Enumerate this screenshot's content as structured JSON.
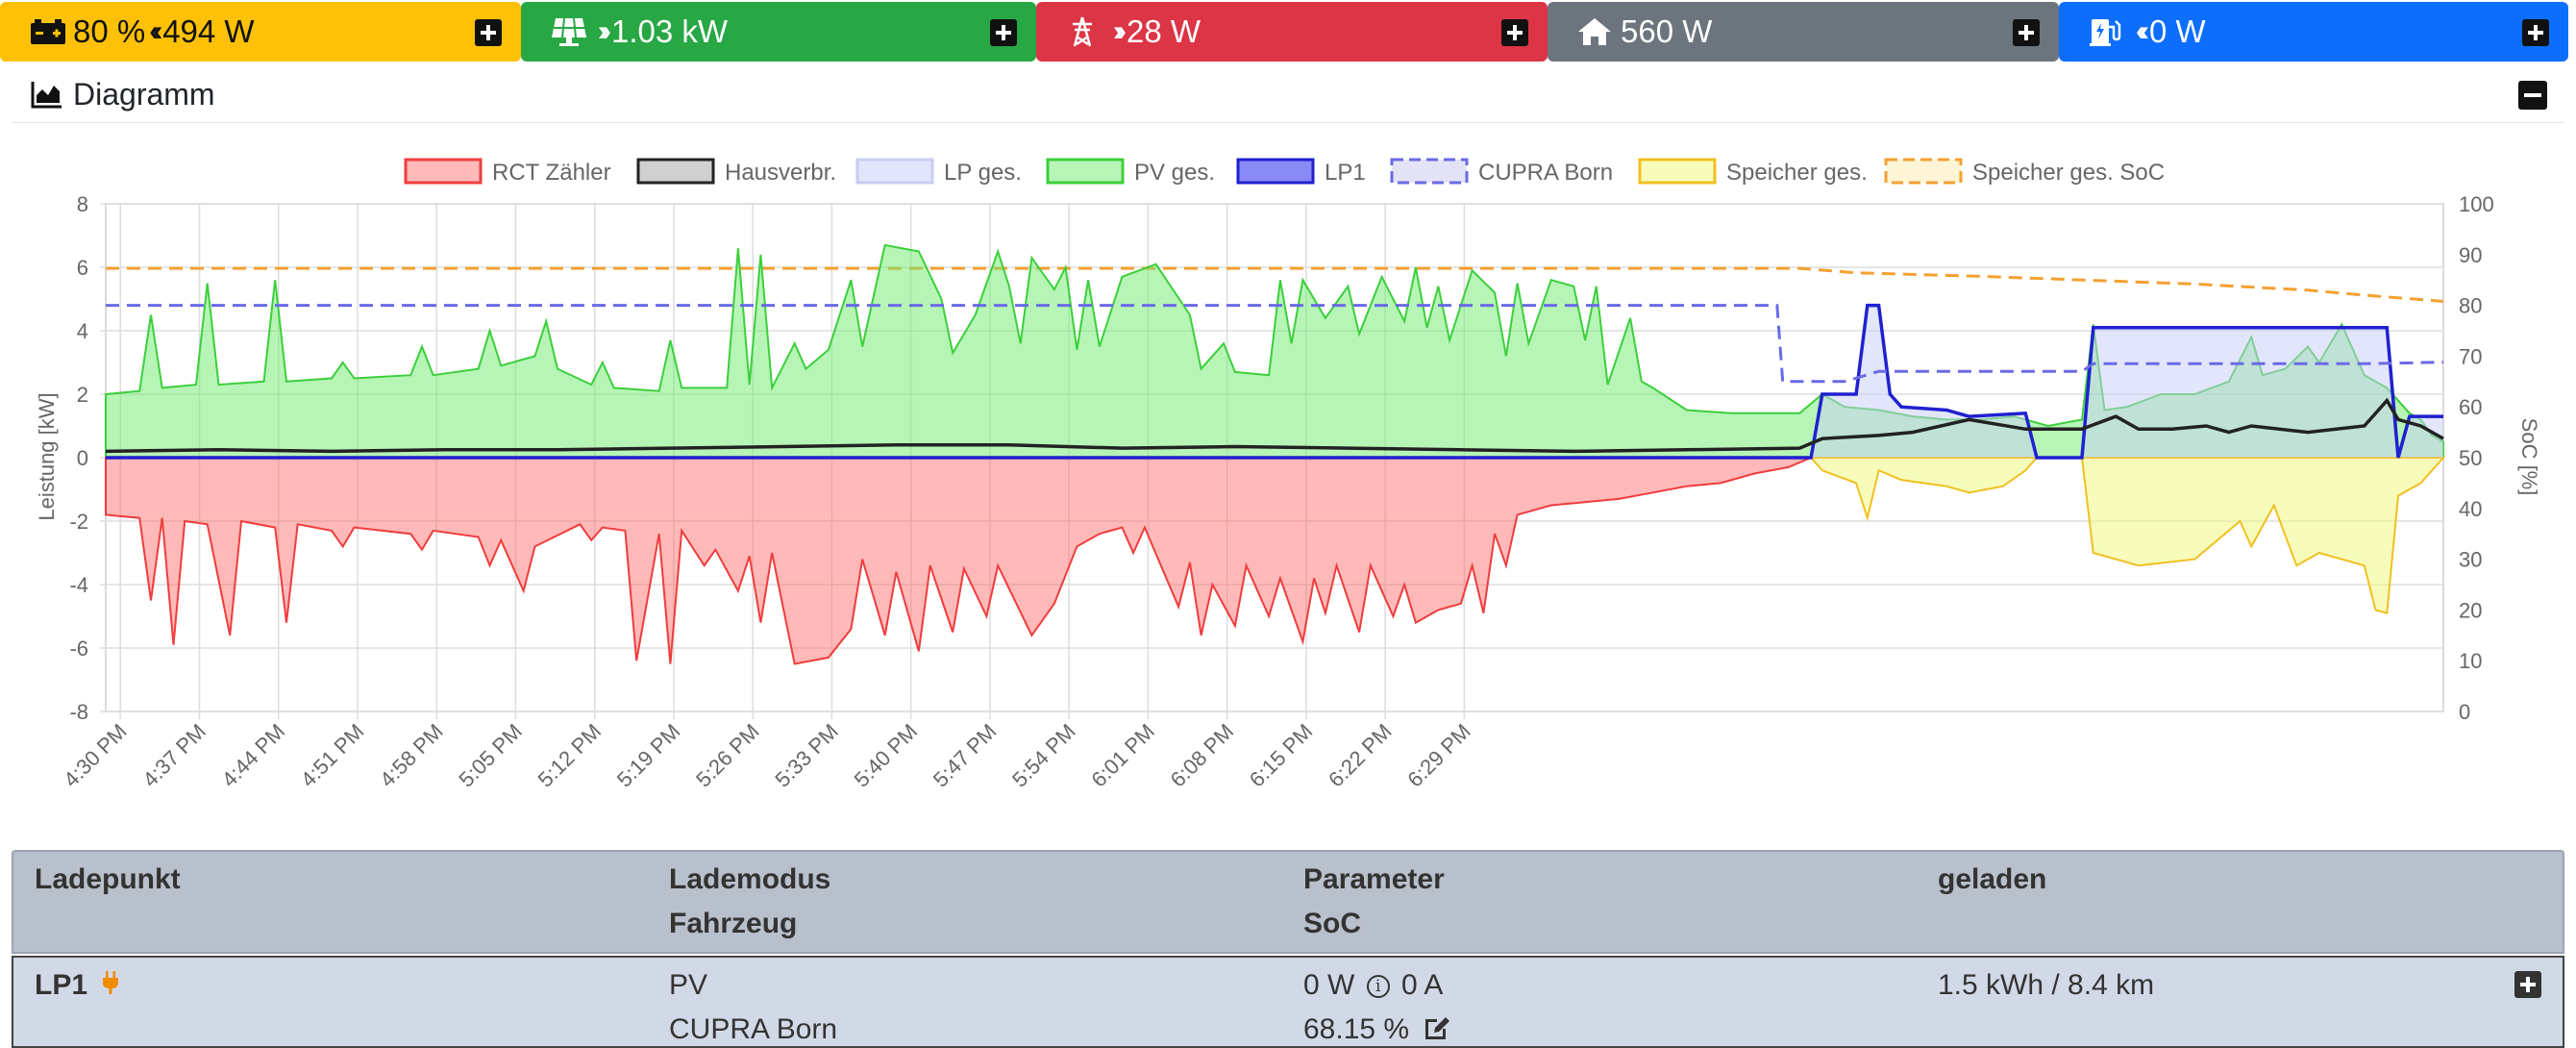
{
  "status": {
    "battery": {
      "soc": "80 %",
      "power": "494 W",
      "color": "#ffc107"
    },
    "pv": {
      "power": "1.03 kW",
      "color": "#28a745"
    },
    "grid": {
      "power": "28 W",
      "color": "#dc3545"
    },
    "house": {
      "power": "560 W",
      "color": "#6c757d"
    },
    "chargepoint": {
      "power": "0 W",
      "color": "#0d6efd"
    }
  },
  "diagram": {
    "title": "Diagramm"
  },
  "chart_data": {
    "type": "line",
    "legend_position": "top",
    "grid": true,
    "xlabel": "",
    "ylabel": "Leistung [kW]",
    "y2label": "SoC [%]",
    "ylim": [
      -8,
      8
    ],
    "y2lim": [
      0,
      100
    ],
    "yticks": [
      "8",
      "6",
      "4",
      "2",
      "0",
      "-2",
      "-4",
      "-6",
      "-8"
    ],
    "y2ticks": [
      "100",
      "90",
      "80",
      "70",
      "60",
      "50",
      "40",
      "30",
      "20",
      "10",
      "0"
    ],
    "xticks": [
      "4:30 PM",
      "4:37 PM",
      "4:44 PM",
      "4:51 PM",
      "4:58 PM",
      "5:05 PM",
      "5:12 PM",
      "5:19 PM",
      "5:26 PM",
      "5:33 PM",
      "5:40 PM",
      "5:47 PM",
      "5:54 PM",
      "6:01 PM",
      "6:08 PM",
      "6:15 PM",
      "6:22 PM",
      "6:29 PM"
    ],
    "x_minutes_start": 0,
    "series": [
      {
        "name": "RCT Zähler",
        "color": "#f03c3c",
        "fill": "rgba(255,99,99,0.45)",
        "dash": false
      },
      {
        "name": "Hausverbr.",
        "color": "#222222",
        "fill": "rgba(120,120,120,0.35)",
        "dash": false
      },
      {
        "name": "LP ges.",
        "color": "#c8ccf0",
        "fill": "rgba(200,205,245,0.5)",
        "dash": false
      },
      {
        "name": "PV ges.",
        "color": "#3ccf3c",
        "fill": "rgba(110,235,110,0.5)",
        "dash": false
      },
      {
        "name": "LP1",
        "color": "#2020d0",
        "fill": "rgba(60,60,240,0.6)",
        "dash": false
      },
      {
        "name": "CUPRA Born",
        "color": "#6a6ae6",
        "fill": "rgba(200,200,240,0.5)",
        "dash": true
      },
      {
        "name": "Speicher ges.",
        "color": "#f0c020",
        "fill": "rgba(240,250,120,0.5)",
        "dash": false
      },
      {
        "name": "Speicher ges. SoC",
        "color": "#f5a030",
        "fill": "rgba(250,230,150,0.4)",
        "dash": true
      }
    ],
    "pv_kw": [
      [
        0,
        2.0
      ],
      [
        3,
        2.1
      ],
      [
        4,
        4.5
      ],
      [
        5,
        2.2
      ],
      [
        8,
        2.3
      ],
      [
        9,
        5.5
      ],
      [
        10,
        2.3
      ],
      [
        14,
        2.4
      ],
      [
        15,
        5.6
      ],
      [
        16,
        2.4
      ],
      [
        20,
        2.5
      ],
      [
        21,
        3.0
      ],
      [
        22,
        2.5
      ],
      [
        27,
        2.6
      ],
      [
        28,
        3.5
      ],
      [
        29,
        2.6
      ],
      [
        33,
        2.8
      ],
      [
        34,
        4.0
      ],
      [
        35,
        2.9
      ],
      [
        38,
        3.2
      ],
      [
        39,
        4.3
      ],
      [
        40,
        2.8
      ],
      [
        43,
        2.3
      ],
      [
        44,
        3.0
      ],
      [
        45,
        2.2
      ],
      [
        49,
        2.1
      ],
      [
        50,
        3.7
      ],
      [
        51,
        2.2
      ],
      [
        55,
        2.2
      ],
      [
        56,
        6.6
      ],
      [
        57,
        2.3
      ],
      [
        58,
        6.4
      ],
      [
        59,
        2.2
      ],
      [
        61,
        3.6
      ],
      [
        62,
        2.8
      ],
      [
        64,
        3.4
      ],
      [
        66,
        5.6
      ],
      [
        67,
        3.5
      ],
      [
        69,
        6.7
      ],
      [
        72,
        6.5
      ],
      [
        74,
        5.0
      ],
      [
        75,
        3.3
      ],
      [
        77,
        4.5
      ],
      [
        79,
        6.5
      ],
      [
        80,
        5.4
      ],
      [
        81,
        3.6
      ],
      [
        82,
        6.3
      ],
      [
        84,
        5.3
      ],
      [
        85,
        6.0
      ],
      [
        86,
        3.4
      ],
      [
        87,
        5.6
      ],
      [
        88,
        3.5
      ],
      [
        90,
        5.7
      ],
      [
        93,
        6.1
      ],
      [
        96,
        4.5
      ],
      [
        97,
        2.8
      ],
      [
        99,
        3.6
      ],
      [
        100,
        2.7
      ],
      [
        103,
        2.6
      ],
      [
        104,
        5.6
      ],
      [
        105,
        3.6
      ],
      [
        106,
        5.6
      ],
      [
        108,
        4.4
      ],
      [
        110,
        5.4
      ],
      [
        111,
        3.9
      ],
      [
        113,
        5.7
      ],
      [
        115,
        4.3
      ],
      [
        116,
        6.0
      ],
      [
        117,
        4.1
      ],
      [
        118,
        5.4
      ],
      [
        119,
        3.7
      ],
      [
        121,
        5.9
      ],
      [
        123,
        5.2
      ],
      [
        124,
        3.2
      ],
      [
        125,
        5.5
      ],
      [
        126,
        3.6
      ],
      [
        128,
        5.6
      ],
      [
        130,
        5.4
      ],
      [
        131,
        3.7
      ],
      [
        132,
        5.4
      ],
      [
        133,
        2.3
      ],
      [
        135,
        4.4
      ],
      [
        136,
        2.4
      ],
      [
        137,
        2.2
      ],
      [
        140,
        1.5
      ],
      [
        144,
        1.4
      ],
      [
        150,
        1.4
      ],
      [
        152,
        2.0
      ],
      [
        154,
        1.6
      ],
      [
        157,
        1.5
      ],
      [
        160,
        1.3
      ],
      [
        163,
        1.2
      ],
      [
        166,
        1.2
      ],
      [
        169,
        1.3
      ],
      [
        172,
        1.0
      ],
      [
        175,
        1.2
      ],
      [
        176,
        4.2
      ],
      [
        177,
        1.5
      ],
      [
        179,
        1.6
      ],
      [
        182,
        2.0
      ],
      [
        185,
        2.0
      ],
      [
        188,
        2.4
      ],
      [
        190,
        3.8
      ],
      [
        191,
        2.6
      ],
      [
        193,
        2.8
      ],
      [
        195,
        3.5
      ],
      [
        196,
        3.0
      ],
      [
        198,
        4.2
      ],
      [
        200,
        2.6
      ],
      [
        202,
        2.2
      ],
      [
        203,
        1.8
      ],
      [
        204,
        1.4
      ],
      [
        205,
        1.2
      ],
      [
        206,
        0.7
      ],
      [
        207,
        0.5
      ]
    ],
    "grid_kw": [
      [
        0,
        -1.8
      ],
      [
        3,
        -1.9
      ],
      [
        4,
        -4.5
      ],
      [
        5,
        -1.9
      ],
      [
        6,
        -5.9
      ],
      [
        7,
        -2.0
      ],
      [
        9,
        -2.1
      ],
      [
        11,
        -5.6
      ],
      [
        12,
        -2.0
      ],
      [
        15,
        -2.2
      ],
      [
        16,
        -5.2
      ],
      [
        17,
        -2.1
      ],
      [
        20,
        -2.3
      ],
      [
        21,
        -2.8
      ],
      [
        22,
        -2.2
      ],
      [
        27,
        -2.4
      ],
      [
        28,
        -2.9
      ],
      [
        29,
        -2.3
      ],
      [
        33,
        -2.5
      ],
      [
        34,
        -3.4
      ],
      [
        35,
        -2.6
      ],
      [
        37,
        -4.2
      ],
      [
        38,
        -2.8
      ],
      [
        42,
        -2.1
      ],
      [
        43,
        -2.6
      ],
      [
        44,
        -2.2
      ],
      [
        46,
        -2.3
      ],
      [
        47,
        -6.4
      ],
      [
        49,
        -2.4
      ],
      [
        50,
        -6.5
      ],
      [
        51,
        -2.3
      ],
      [
        53,
        -3.4
      ],
      [
        54,
        -2.9
      ],
      [
        56,
        -4.2
      ],
      [
        57,
        -3.1
      ],
      [
        58,
        -5.2
      ],
      [
        59,
        -3.0
      ],
      [
        61,
        -6.5
      ],
      [
        64,
        -6.3
      ],
      [
        66,
        -5.4
      ],
      [
        67,
        -3.2
      ],
      [
        69,
        -5.6
      ],
      [
        70,
        -3.6
      ],
      [
        72,
        -6.1
      ],
      [
        73,
        -3.4
      ],
      [
        75,
        -5.5
      ],
      [
        76,
        -3.5
      ],
      [
        78,
        -5.0
      ],
      [
        79,
        -3.4
      ],
      [
        82,
        -5.6
      ],
      [
        84,
        -4.6
      ],
      [
        86,
        -2.8
      ],
      [
        88,
        -2.4
      ],
      [
        90,
        -2.2
      ],
      [
        91,
        -3.0
      ],
      [
        92,
        -2.2
      ],
      [
        95,
        -4.7
      ],
      [
        96,
        -3.3
      ],
      [
        97,
        -5.6
      ],
      [
        98,
        -4.0
      ],
      [
        100,
        -5.3
      ],
      [
        101,
        -3.4
      ],
      [
        103,
        -5.0
      ],
      [
        104,
        -3.8
      ],
      [
        106,
        -5.8
      ],
      [
        107,
        -3.8
      ],
      [
        108,
        -4.9
      ],
      [
        109,
        -3.4
      ],
      [
        111,
        -5.5
      ],
      [
        112,
        -3.4
      ],
      [
        114,
        -5.0
      ],
      [
        115,
        -4.0
      ],
      [
        116,
        -5.2
      ],
      [
        118,
        -4.8
      ],
      [
        120,
        -4.6
      ],
      [
        121,
        -3.4
      ],
      [
        122,
        -4.9
      ],
      [
        123,
        -2.4
      ],
      [
        124,
        -3.4
      ],
      [
        125,
        -1.8
      ],
      [
        128,
        -1.5
      ],
      [
        131,
        -1.4
      ],
      [
        134,
        -1.3
      ],
      [
        137,
        -1.1
      ],
      [
        140,
        -0.9
      ],
      [
        143,
        -0.8
      ],
      [
        146,
        -0.5
      ],
      [
        149,
        -0.3
      ],
      [
        151,
        0.0
      ],
      [
        207,
        0.0
      ]
    ],
    "house_kw": [
      [
        0,
        0.2
      ],
      [
        10,
        0.25
      ],
      [
        20,
        0.2
      ],
      [
        30,
        0.25
      ],
      [
        40,
        0.25
      ],
      [
        50,
        0.3
      ],
      [
        60,
        0.35
      ],
      [
        70,
        0.4
      ],
      [
        80,
        0.4
      ],
      [
        90,
        0.3
      ],
      [
        100,
        0.35
      ],
      [
        110,
        0.3
      ],
      [
        120,
        0.25
      ],
      [
        130,
        0.2
      ],
      [
        140,
        0.25
      ],
      [
        150,
        0.3
      ],
      [
        152,
        0.6
      ],
      [
        157,
        0.7
      ],
      [
        160,
        0.8
      ],
      [
        165,
        1.2
      ],
      [
        170,
        0.9
      ],
      [
        175,
        0.9
      ],
      [
        178,
        1.3
      ],
      [
        180,
        0.9
      ],
      [
        183,
        0.9
      ],
      [
        186,
        1.0
      ],
      [
        188,
        0.8
      ],
      [
        190,
        1.0
      ],
      [
        195,
        0.8
      ],
      [
        200,
        1.0
      ],
      [
        202,
        1.8
      ],
      [
        203,
        1.2
      ],
      [
        205,
        1.0
      ],
      [
        207,
        0.6
      ]
    ],
    "lp1_kw": [
      [
        0,
        0
      ],
      [
        151,
        0
      ],
      [
        152,
        2.0
      ],
      [
        155,
        2.0
      ],
      [
        156,
        4.8
      ],
      [
        157,
        4.8
      ],
      [
        158,
        2.0
      ],
      [
        159,
        1.6
      ],
      [
        163,
        1.5
      ],
      [
        165,
        1.3
      ],
      [
        170,
        1.4
      ],
      [
        171,
        0.0
      ],
      [
        175,
        0.0
      ],
      [
        176,
        4.1
      ],
      [
        178,
        4.1
      ],
      [
        190,
        4.1
      ],
      [
        202,
        4.1
      ],
      [
        203,
        0.0
      ],
      [
        204,
        1.3
      ],
      [
        207,
        1.3
      ]
    ],
    "storage_kw": [
      [
        0,
        0
      ],
      [
        151,
        0
      ],
      [
        152,
        -0.4
      ],
      [
        155,
        -0.8
      ],
      [
        156,
        -1.9
      ],
      [
        157,
        -0.4
      ],
      [
        159,
        -0.7
      ],
      [
        163,
        -0.9
      ],
      [
        165,
        -1.1
      ],
      [
        168,
        -0.9
      ],
      [
        170,
        -0.4
      ],
      [
        171,
        0.0
      ],
      [
        175,
        0.0
      ],
      [
        176,
        -3.0
      ],
      [
        180,
        -3.4
      ],
      [
        185,
        -3.2
      ],
      [
        189,
        -2.0
      ],
      [
        190,
        -2.8
      ],
      [
        192,
        -1.5
      ],
      [
        194,
        -3.4
      ],
      [
        196,
        -3.0
      ],
      [
        198,
        -3.2
      ],
      [
        200,
        -3.4
      ],
      [
        201,
        -4.8
      ],
      [
        202,
        -4.9
      ],
      [
        203,
        -1.2
      ],
      [
        205,
        -0.8
      ],
      [
        207,
        0.0
      ]
    ],
    "ev_soc_pct": [
      [
        0,
        80
      ],
      [
        148,
        80
      ],
      [
        148.5,
        65
      ],
      [
        154,
        65
      ],
      [
        157,
        67
      ],
      [
        175,
        67
      ],
      [
        176,
        68.5
      ],
      [
        200,
        68.5
      ],
      [
        207,
        68.8
      ]
    ],
    "storage_soc_pct": [
      [
        0,
        87.3
      ],
      [
        150,
        87.3
      ],
      [
        155,
        86.4
      ],
      [
        165,
        85.8
      ],
      [
        175,
        85.0
      ],
      [
        185,
        84.2
      ],
      [
        195,
        83.0
      ],
      [
        200,
        82.0
      ],
      [
        207,
        80.8
      ]
    ]
  },
  "table": {
    "headers": {
      "col1": "Ladepunkt",
      "col2a": "Lademodus",
      "col2b": "Fahrzeug",
      "col3a": "Parameter",
      "col3b": "SoC",
      "col4": "geladen"
    },
    "rows": [
      {
        "name": "LP1",
        "mode": "PV",
        "vehicle": "CUPRA Born",
        "power": "0 W",
        "current": "0 A",
        "soc": "68.15 %",
        "charged": "1.5 kWh / 8.4 km"
      }
    ]
  }
}
